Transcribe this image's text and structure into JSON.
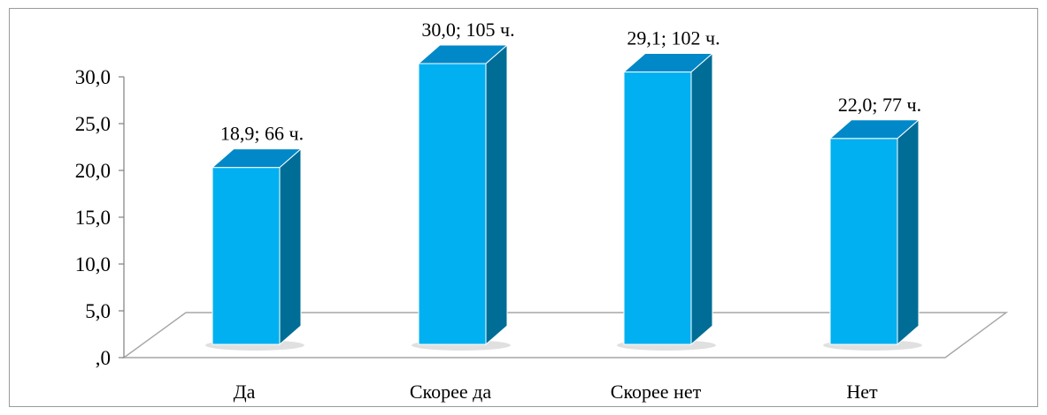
{
  "chart_data": {
    "type": "bar",
    "style": "3d-column",
    "categories": [
      "Да",
      "Скорее да",
      "Скорее нет",
      "Нет"
    ],
    "values": [
      18.9,
      30.0,
      29.1,
      22.0
    ],
    "data_labels": [
      "18,9; 66 ч.",
      "30,0; 105 ч.",
      "29,1; 102 ч.",
      "22,0; 77 ч."
    ],
    "y_ticks": [
      ",0",
      "5,0",
      "10,0",
      "15,0",
      "20,0",
      "25,0",
      "30,0"
    ],
    "ylim": [
      0,
      30
    ],
    "grid": false,
    "legend": "none",
    "colors": {
      "bar_front": "#00b0f0",
      "bar_top": "#0088c8",
      "bar_side": "#006d96",
      "floor_line": "#a6a6a6",
      "axis": "#808080"
    }
  }
}
